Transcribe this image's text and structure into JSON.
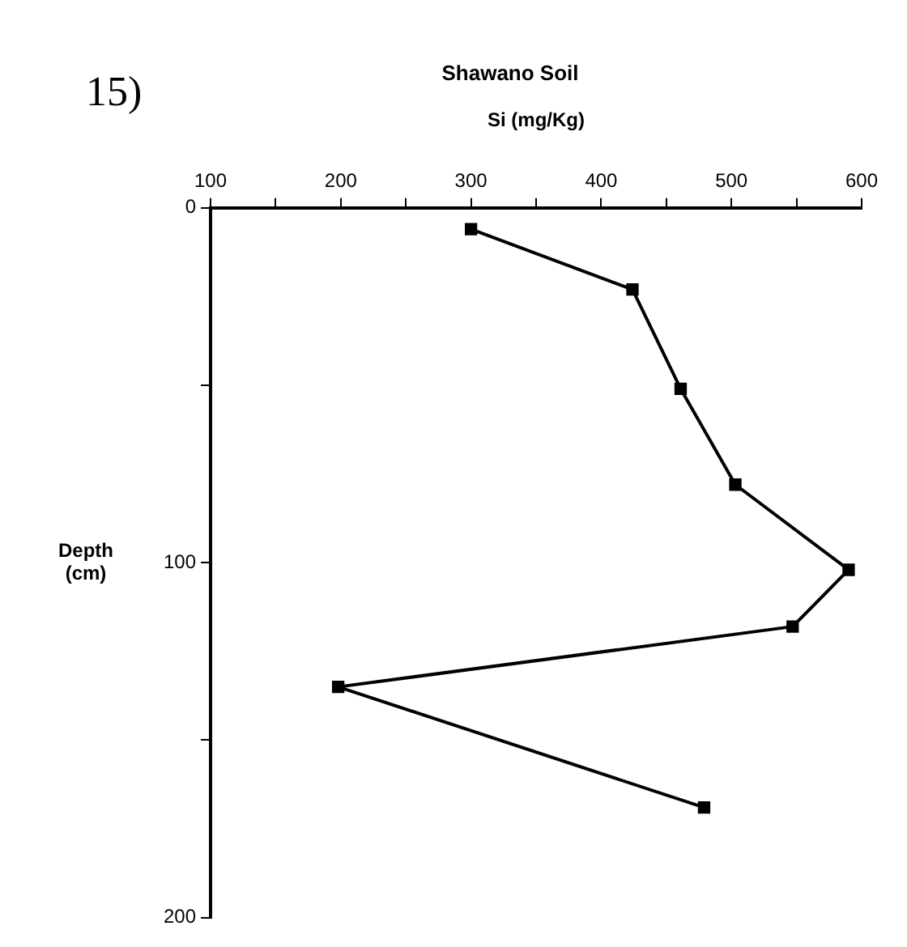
{
  "chart_data": {
    "type": "line",
    "title": "Shawano Soil",
    "xlabel": "Si (mg/Kg)",
    "ylabel": "Depth (cm)",
    "annotations": [
      "15)"
    ],
    "x": [
      300,
      424,
      461,
      503,
      590,
      547,
      198,
      479
    ],
    "values": [
      6,
      23,
      51,
      78,
      102,
      118,
      135,
      169
    ],
    "color": "#000000",
    "marker": "square",
    "line_style": "solid",
    "grid": false,
    "legend": false,
    "xlim": [
      100,
      600
    ],
    "xticks": [
      100,
      {
        "value": 150,
        "label": null
      },
      200,
      {
        "value": 250,
        "label": null
      },
      300,
      {
        "value": 350,
        "label": null
      },
      400,
      {
        "value": 450,
        "label": null
      },
      500,
      {
        "value": 550,
        "label": null
      },
      600
    ],
    "ylim": [
      200,
      0
    ],
    "yticks": [
      0,
      {
        "value": 50,
        "label": null
      },
      100,
      {
        "value": 150,
        "label": null
      },
      200
    ]
  }
}
